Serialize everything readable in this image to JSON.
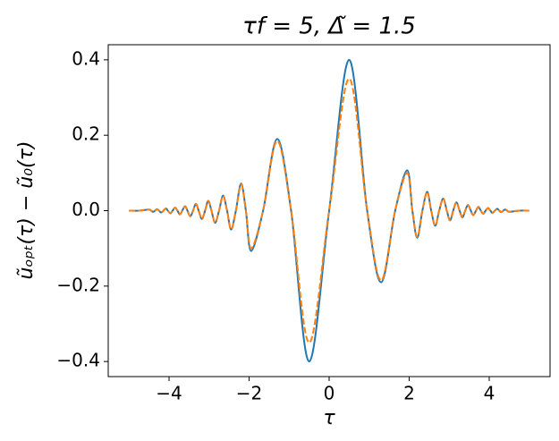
{
  "chart_data": {
    "type": "line",
    "title": "τf = 5,  Δ̃ = 1.5",
    "xlabel": "τ",
    "ylabel": "ũₒₚₜ(τ) − ũ₀(τ)",
    "x": [
      -5,
      -4.75,
      -4.5,
      -4.45,
      -4.4,
      -4.35,
      -4.3,
      -4.25,
      -4.2,
      -4.14,
      -4.08,
      -4.03,
      -3.97,
      -3.91,
      -3.85,
      -3.79,
      -3.73,
      -3.67,
      -3.6,
      -3.54,
      -3.47,
      -3.4,
      -3.33,
      -3.26,
      -3.18,
      -3.1,
      -3.02,
      -2.94,
      -2.85,
      -2.75,
      -2.65,
      -2.55,
      -2.45,
      -2.33,
      -2.2,
      -2.08,
      -1.95,
      -1.65,
      -1.3,
      -0.95,
      -0.5,
      0,
      0.5,
      0.95,
      1.3,
      1.65,
      1.95,
      2.08,
      2.2,
      2.33,
      2.45,
      2.55,
      2.65,
      2.75,
      2.85,
      2.94,
      3.02,
      3.1,
      3.18,
      3.26,
      3.33,
      3.4,
      3.47,
      3.54,
      3.6,
      3.67,
      3.73,
      3.79,
      3.85,
      3.91,
      3.97,
      4.03,
      4.08,
      4.14,
      4.2,
      4.25,
      4.3,
      4.35,
      4.4,
      4.45,
      4.5,
      4.75,
      5
    ],
    "series": [
      {
        "color": "#1f77b4",
        "dash": "solid",
        "values": [
          0,
          0,
          0.003,
          0,
          -0.003,
          0,
          0.004,
          0,
          -0.005,
          0,
          0.006,
          0,
          -0.007,
          0,
          0.008,
          0,
          -0.01,
          0,
          0.012,
          0,
          -0.015,
          0,
          0.018,
          0,
          -0.022,
          0,
          0.026,
          0,
          -0.032,
          0,
          0.04,
          0,
          -0.05,
          0,
          0.072,
          0,
          -0.107,
          0,
          0.19,
          0,
          -0.4,
          0,
          0.4,
          0,
          -0.19,
          0,
          0.107,
          0,
          -0.072,
          0,
          0.05,
          0,
          -0.04,
          0,
          0.032,
          0,
          -0.026,
          0,
          0.022,
          0,
          -0.018,
          0,
          0.015,
          0,
          -0.012,
          0,
          0.01,
          0,
          -0.008,
          0,
          0.007,
          0,
          -0.006,
          0,
          0.005,
          0,
          -0.004,
          0,
          0.003,
          0,
          -0.003,
          0,
          0
        ]
      },
      {
        "color": "#ff7f0e",
        "dash": "dashed",
        "values": [
          0,
          0,
          0.003,
          0,
          -0.003,
          0,
          0.004,
          0,
          -0.005,
          0,
          0.006,
          0,
          -0.007,
          0,
          0.008,
          0,
          -0.01,
          0,
          0.012,
          0,
          -0.015,
          0,
          0.018,
          0,
          -0.022,
          0,
          0.026,
          0,
          -0.032,
          0,
          0.04,
          0,
          -0.05,
          0,
          0.07,
          0,
          -0.1,
          0,
          0.185,
          0,
          -0.35,
          0,
          0.35,
          0,
          -0.185,
          0,
          0.1,
          0,
          -0.07,
          0,
          0.05,
          0,
          -0.04,
          0,
          0.032,
          0,
          -0.026,
          0,
          0.022,
          0,
          -0.018,
          0,
          0.015,
          0,
          -0.012,
          0,
          0.01,
          0,
          -0.008,
          0,
          0.007,
          0,
          -0.006,
          0,
          0.005,
          0,
          -0.004,
          0,
          0.003,
          0,
          -0.003,
          0,
          0
        ]
      }
    ],
    "xlim": [
      -5.52,
      5.52
    ],
    "ylim": [
      -0.44,
      0.44
    ],
    "xticks": [
      {
        "value": -4,
        "label": "−4"
      },
      {
        "value": -2,
        "label": "−2"
      },
      {
        "value": 0,
        "label": "0"
      },
      2,
      4
    ],
    "yticks": [
      {
        "value": -0.4,
        "label": "−0.4"
      },
      {
        "value": -0.2,
        "label": "−0.2"
      },
      {
        "value": 0,
        "label": "0.0"
      },
      0.2,
      0.4
    ],
    "grid": false
  }
}
